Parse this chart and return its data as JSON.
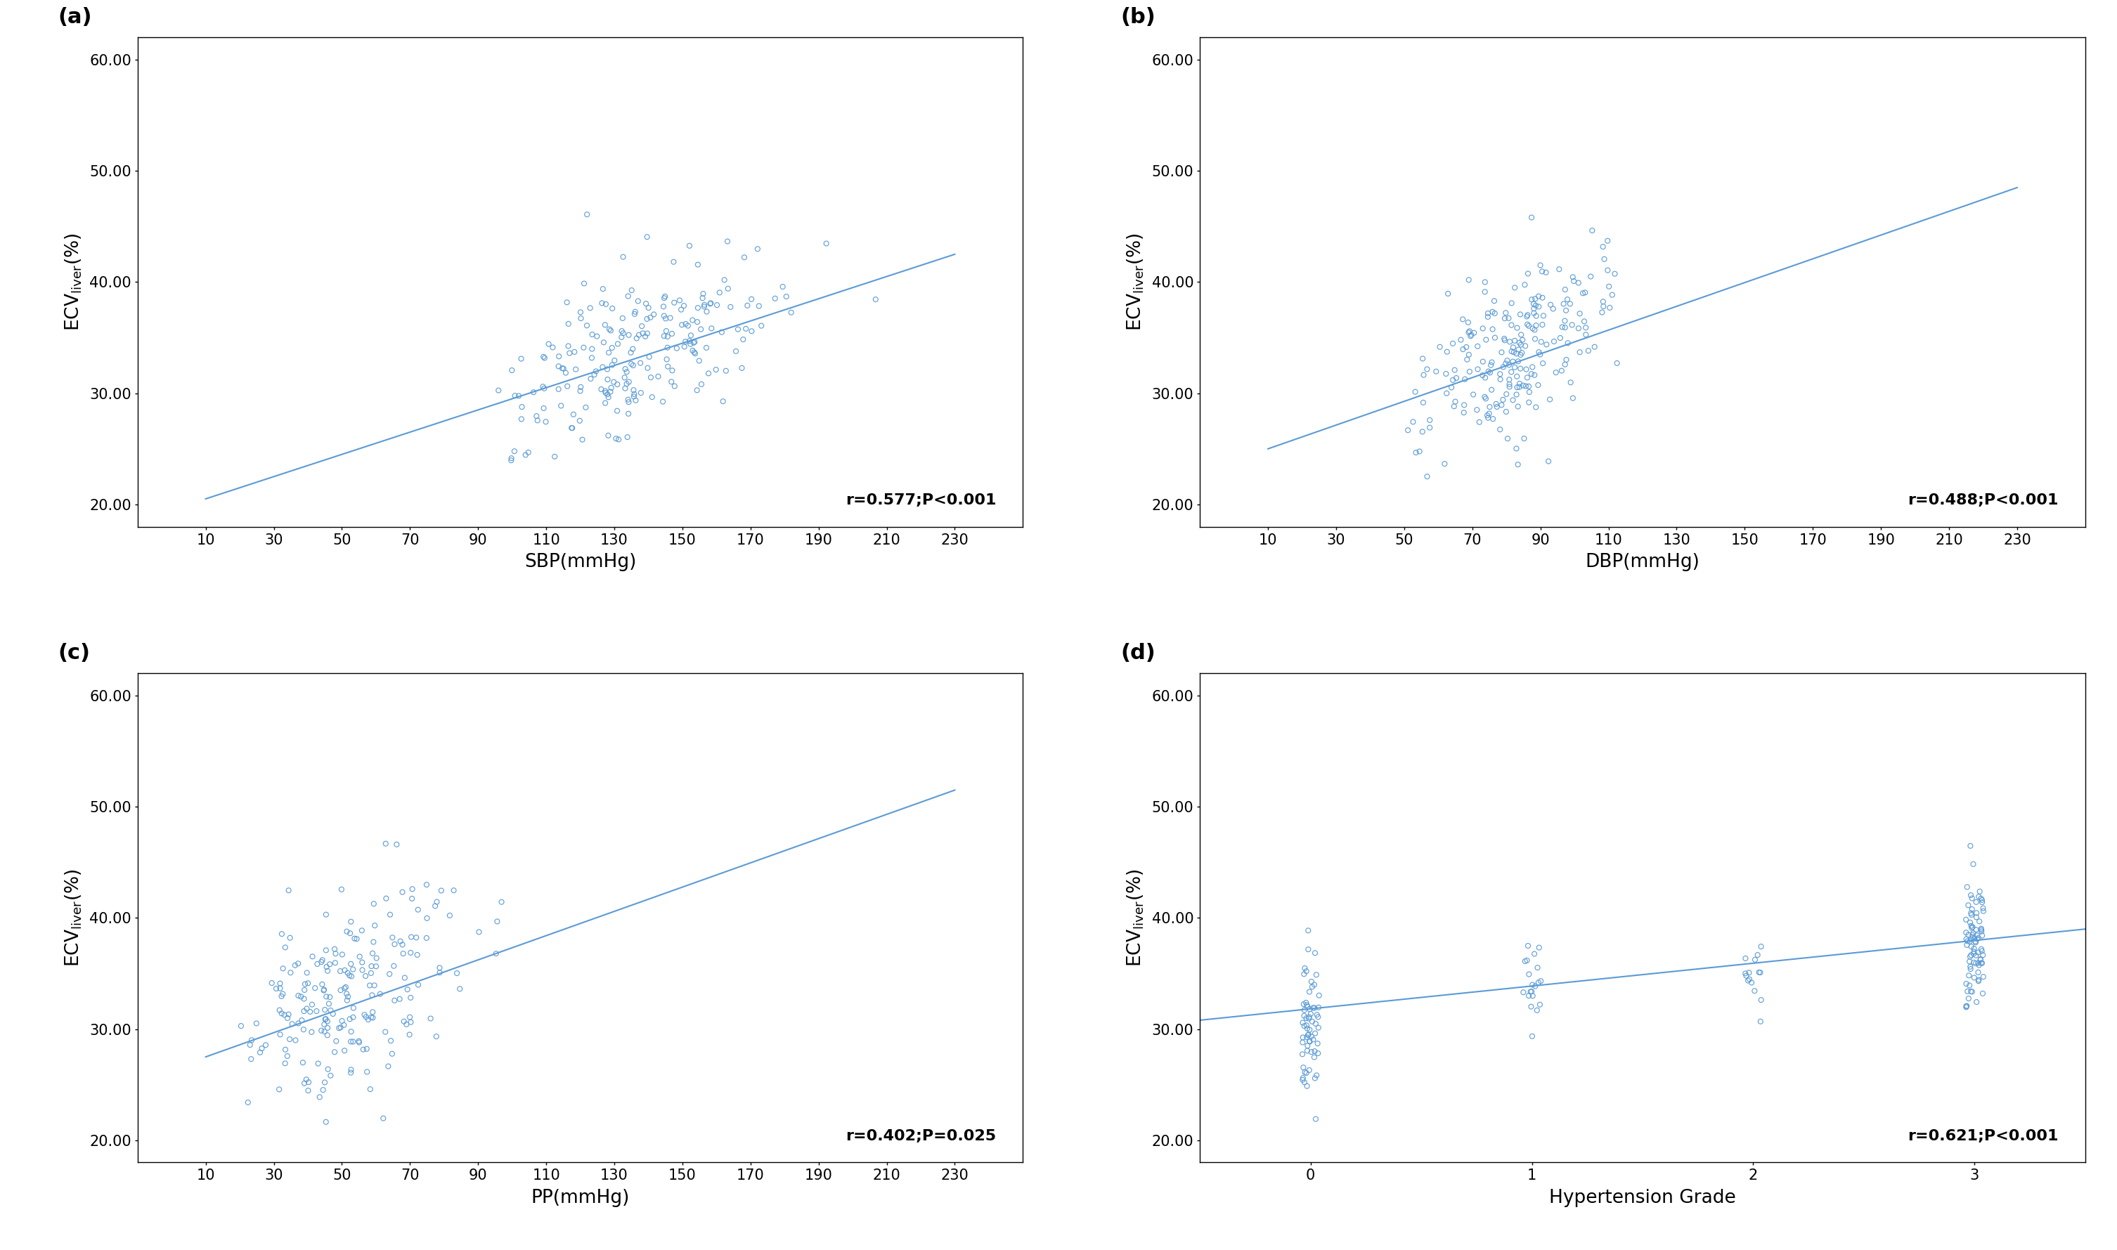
{
  "scatter_color": "#5B9BD5",
  "line_color": "#5B9BD5",
  "marker_size": 5,
  "marker_lw": 0.8,
  "line_width": 1.5,
  "bg_color": "#FFFFFF",
  "ylim": [
    18.0,
    62.0
  ],
  "yticks": [
    20.0,
    30.0,
    40.0,
    50.0,
    60.0
  ],
  "xticks_abp": [
    10,
    30,
    50,
    70,
    90,
    110,
    130,
    150,
    170,
    190,
    210,
    230
  ],
  "xticks_d": [
    0,
    1,
    2,
    3
  ],
  "xlabel_a": "SBP(mmHg)",
  "xlabel_b": "DBP(mmHg)",
  "xlabel_c": "PP(mmHg)",
  "xlabel_d": "Hypertension Grade",
  "panel_labels": [
    "(a)",
    "(b)",
    "(c)",
    "(d)"
  ],
  "annotations": [
    "r=0.577;P<0.001",
    "r=0.488;P<0.001",
    "r=0.402;P=0.025",
    "r=0.621;P<0.001"
  ],
  "font_size_label": 19,
  "font_size_tick": 15,
  "font_size_annot": 16,
  "font_size_panel": 22,
  "axis_lw": 1.0,
  "line_a_x0": 10,
  "line_a_y0": 20.5,
  "line_a_x1": 230,
  "line_a_y1": 42.5,
  "line_b_x0": 10,
  "line_b_y0": 25.0,
  "line_b_x1": 230,
  "line_b_y1": 48.5,
  "line_c_x0": 10,
  "line_c_y0": 27.5,
  "line_c_x1": 230,
  "line_c_y1": 51.5,
  "line_d_x0": -0.5,
  "line_d_y0": 30.8,
  "line_d_x1": 3.5,
  "line_d_y1": 39.0
}
